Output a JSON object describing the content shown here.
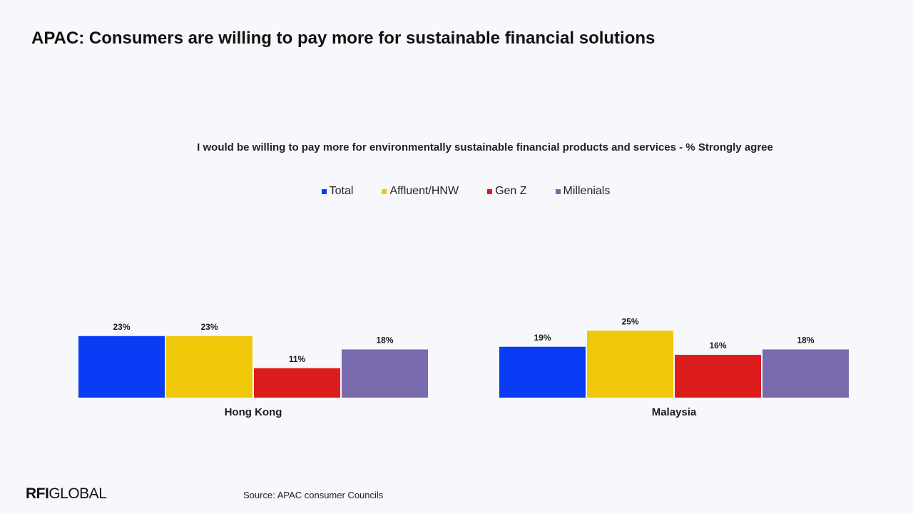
{
  "page": {
    "title": "APAC: Consumers are willing to pay more for sustainable financial solutions",
    "source": "Source: APAC consumer Councils",
    "logo": {
      "strong": "RFI",
      "light": "GLOBAL"
    }
  },
  "chart_data": {
    "type": "bar",
    "title": "I would be willing to pay more for environmentally sustainable financial products and services - % Strongly agree",
    "categories": [
      "Hong Kong",
      "Malaysia"
    ],
    "series": [
      {
        "name": "Total",
        "color": "#0a3cf5",
        "values": [
          23,
          19
        ]
      },
      {
        "name": "Affluent/HNW",
        "color": "#efc80a",
        "values": [
          23,
          25
        ]
      },
      {
        "name": "Gen Z",
        "color": "#dc1c1c",
        "values": [
          11,
          16
        ]
      },
      {
        "name": "Millenials",
        "color": "#7a6aae",
        "values": [
          18,
          18
        ]
      }
    ],
    "value_suffix": "%",
    "legend_position": "top-center",
    "grid": false,
    "axes_visible": false
  }
}
